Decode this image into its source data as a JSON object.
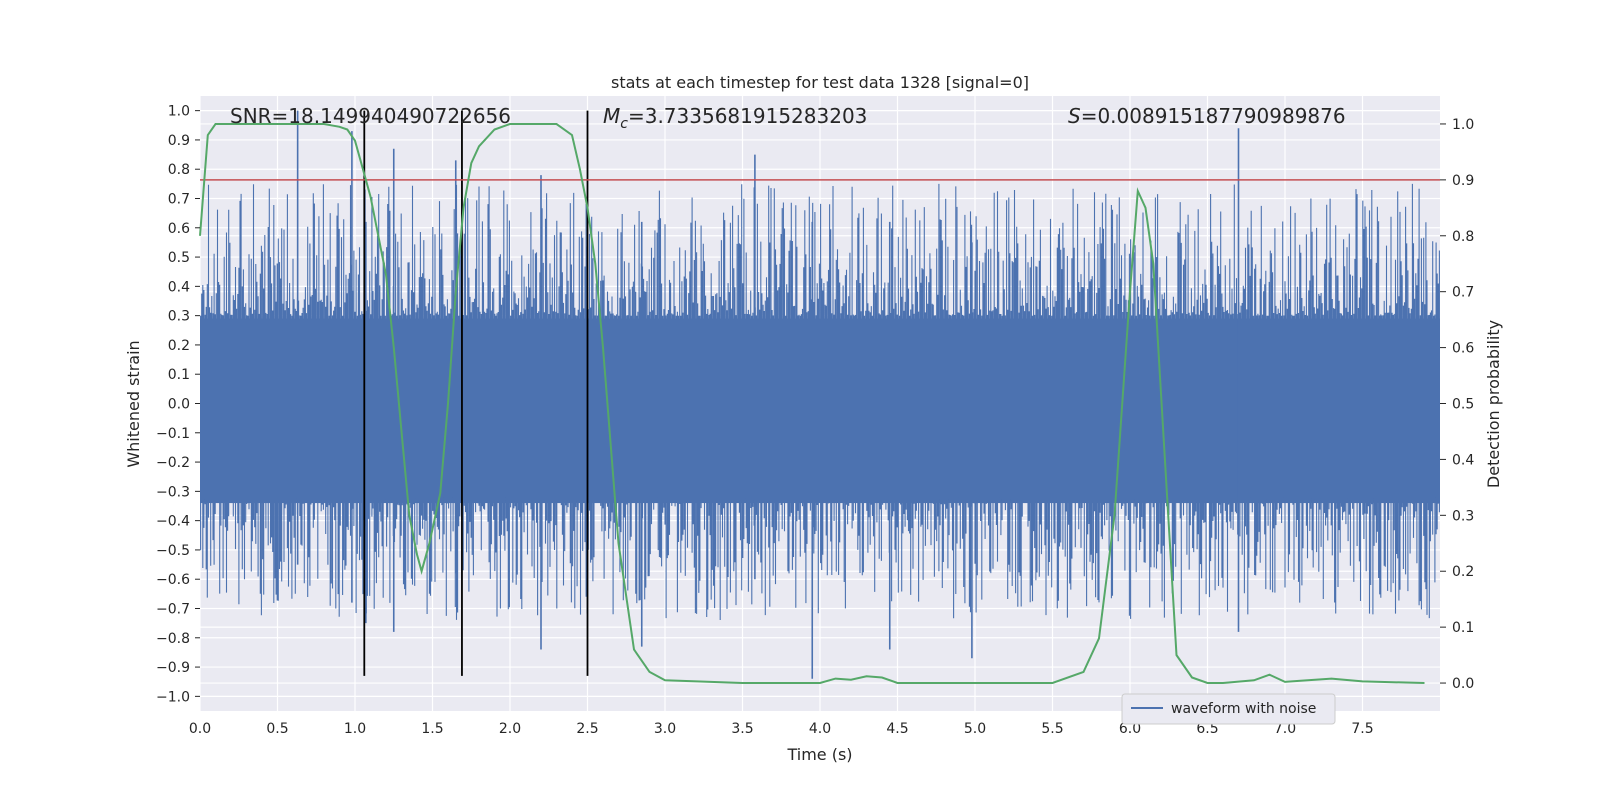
{
  "chart_data": {
    "type": "line",
    "title": "stats at each timestep for test data 1328 [signal=0]",
    "xlabel": "Time (s)",
    "ylabel_left": "Whitened strain",
    "ylabel_right": "Detection probability",
    "xlim": [
      0,
      8
    ],
    "ylim_left": [
      -1.05,
      1.05
    ],
    "ylim_right": [
      -0.05,
      1.05
    ],
    "x_ticks": [
      "0.0",
      "0.5",
      "1.0",
      "1.5",
      "2.0",
      "2.5",
      "3.0",
      "3.5",
      "4.0",
      "4.5",
      "5.0",
      "5.5",
      "6.0",
      "6.5",
      "7.0",
      "7.5"
    ],
    "y_left_ticks": [
      "1.0",
      "0.9",
      "0.8",
      "0.7",
      "0.6",
      "0.5",
      "0.4",
      "0.3",
      "0.2",
      "0.1",
      "0.0",
      "−0.1",
      "−0.2",
      "−0.3",
      "−0.4",
      "−0.5",
      "−0.6",
      "−0.7",
      "−0.8",
      "−0.9",
      "−1.0"
    ],
    "y_right_ticks": [
      "1.0",
      "0.9",
      "0.8",
      "0.7",
      "0.6",
      "0.5",
      "0.4",
      "0.3",
      "0.2",
      "0.1",
      "0.0"
    ],
    "annotations": {
      "snr_label": "SNR=18.149940490722656",
      "mc_prefix": "M",
      "mc_sub": "c",
      "mc_value": "=3.7335681915283203",
      "s_prefix": "S",
      "s_value": "=0.008915187790989876"
    },
    "legend": {
      "label": "waveform with noise",
      "placement": "lower-right"
    },
    "vertical_lines_x": [
      1.06,
      1.69,
      2.5
    ],
    "threshold_probability": 0.9,
    "waveform": {
      "name": "waveform with noise",
      "color": "#4c72b0",
      "spikes": [
        {
          "x": 0.63,
          "top": 1.0,
          "bottom": -0.55
        },
        {
          "x": 0.98,
          "top": 0.93,
          "bottom": -0.68
        },
        {
          "x": 1.25,
          "top": 0.87,
          "bottom": -0.78
        },
        {
          "x": 1.07,
          "top": 0.62,
          "bottom": -0.75
        },
        {
          "x": 1.65,
          "top": 0.83,
          "bottom": -0.58
        },
        {
          "x": 2.2,
          "top": 0.78,
          "bottom": -0.84
        },
        {
          "x": 2.85,
          "top": 0.62,
          "bottom": -0.83
        },
        {
          "x": 3.58,
          "top": 0.85,
          "bottom": -0.6
        },
        {
          "x": 3.95,
          "top": 0.62,
          "bottom": -0.94
        },
        {
          "x": 4.45,
          "top": 0.62,
          "bottom": -0.84
        },
        {
          "x": 4.98,
          "top": 0.55,
          "bottom": -0.87
        },
        {
          "x": 6.7,
          "top": 0.94,
          "bottom": -0.78
        }
      ]
    },
    "probability": {
      "color": "#55a868",
      "x": [
        0.0,
        0.05,
        0.1,
        0.2,
        0.4,
        0.6,
        0.8,
        0.9,
        0.95,
        1.0,
        1.05,
        1.1,
        1.15,
        1.2,
        1.25,
        1.3,
        1.35,
        1.4,
        1.43,
        1.48,
        1.55,
        1.6,
        1.65,
        1.7,
        1.75,
        1.8,
        1.9,
        2.0,
        2.1,
        2.2,
        2.3,
        2.4,
        2.45,
        2.5,
        2.55,
        2.6,
        2.7,
        2.8,
        2.9,
        3.0,
        3.5,
        4.0,
        4.1,
        4.2,
        4.3,
        4.4,
        4.5,
        5.0,
        5.5,
        5.7,
        5.8,
        5.9,
        6.0,
        6.05,
        6.1,
        6.15,
        6.3,
        6.4,
        6.5,
        6.6,
        6.8,
        6.9,
        7.0,
        7.1,
        7.3,
        7.5,
        7.9
      ],
      "y": [
        0.8,
        0.98,
        1.0,
        1.0,
        1.0,
        1.0,
        1.0,
        0.995,
        0.99,
        0.97,
        0.92,
        0.87,
        0.8,
        0.73,
        0.6,
        0.45,
        0.3,
        0.23,
        0.2,
        0.25,
        0.34,
        0.5,
        0.7,
        0.85,
        0.93,
        0.96,
        0.99,
        1.0,
        1.0,
        1.0,
        1.0,
        0.98,
        0.92,
        0.85,
        0.75,
        0.6,
        0.25,
        0.06,
        0.02,
        0.005,
        0.0,
        0.0,
        0.008,
        0.006,
        0.012,
        0.01,
        0.0,
        0.0,
        0.0,
        0.02,
        0.08,
        0.3,
        0.7,
        0.88,
        0.85,
        0.75,
        0.05,
        0.01,
        0.0,
        0.0,
        0.005,
        0.015,
        0.002,
        0.004,
        0.008,
        0.003,
        0.0
      ]
    }
  }
}
